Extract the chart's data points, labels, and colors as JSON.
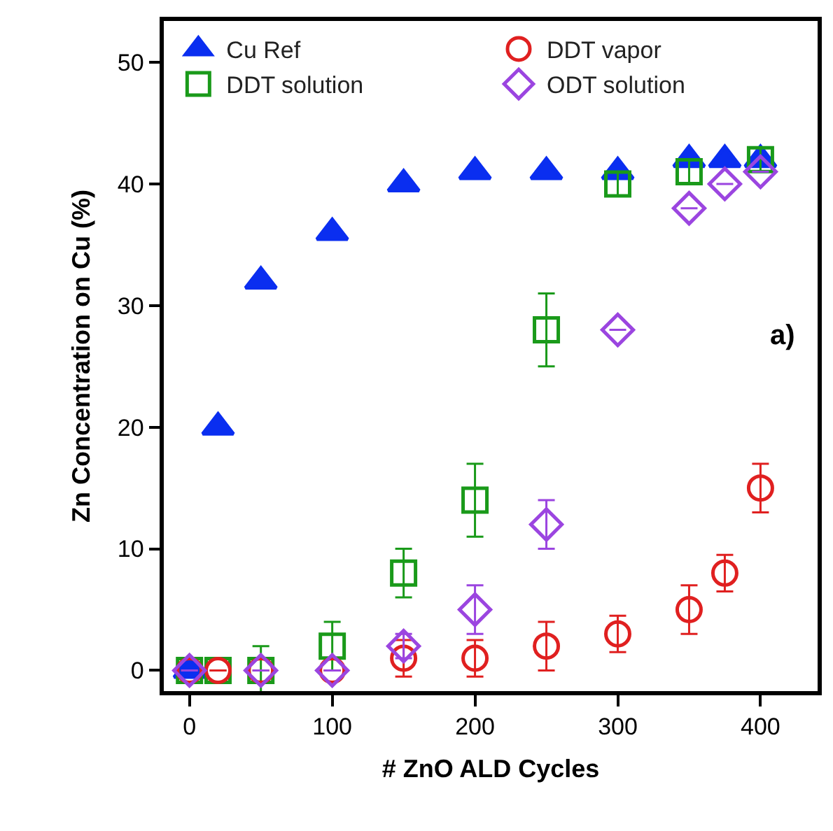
{
  "chart_data": {
    "type": "scatter",
    "xlabel": "# ZnO ALD Cycles",
    "ylabel": "Zn Concentration on Cu (%)",
    "x": [
      0,
      20,
      50,
      100,
      150,
      200,
      250,
      300,
      350,
      375,
      400
    ],
    "series": [
      {
        "name": "Cu Ref",
        "color": "#0a2ef0",
        "marker": "triangle",
        "values": [
          0,
          20,
          32,
          36,
          40,
          41,
          41,
          41,
          42,
          42,
          42
        ]
      },
      {
        "name": "DDT solution",
        "color": "#1a9a1a",
        "marker": "square",
        "x": [
          0,
          20,
          50,
          100,
          150,
          200,
          250,
          300,
          350,
          400
        ],
        "values": [
          0,
          0,
          0,
          2,
          8,
          14,
          28,
          40,
          41,
          42
        ],
        "errors": [
          null,
          null,
          2,
          2,
          2,
          3,
          3,
          1,
          1,
          1
        ]
      },
      {
        "name": "DDT vapor",
        "color": "#e02020",
        "marker": "circle",
        "values": [
          0,
          0,
          0,
          0,
          1,
          1,
          2,
          3,
          5,
          8,
          15
        ],
        "errors": [
          null,
          null,
          null,
          null,
          1.5,
          1.5,
          2,
          1.5,
          2,
          1.5,
          2
        ]
      },
      {
        "name": "ODT solution",
        "color": "#9b45e0",
        "marker": "diamond",
        "x": [
          0,
          50,
          100,
          150,
          200,
          250,
          300,
          350,
          375,
          400
        ],
        "values": [
          0,
          0,
          0,
          2,
          5,
          12,
          28,
          38,
          40,
          41
        ],
        "errors": [
          null,
          null,
          null,
          1,
          2,
          2,
          null,
          null,
          null,
          null
        ]
      }
    ],
    "annotations": [
      "a)"
    ],
    "xlim": [
      -18,
      440
    ],
    "xticks": [
      0,
      100,
      200,
      300,
      400
    ],
    "ylim": [
      -1.7,
      53.4
    ],
    "yticks": [
      0,
      10,
      20,
      30,
      40,
      50
    ],
    "legend": "top"
  }
}
